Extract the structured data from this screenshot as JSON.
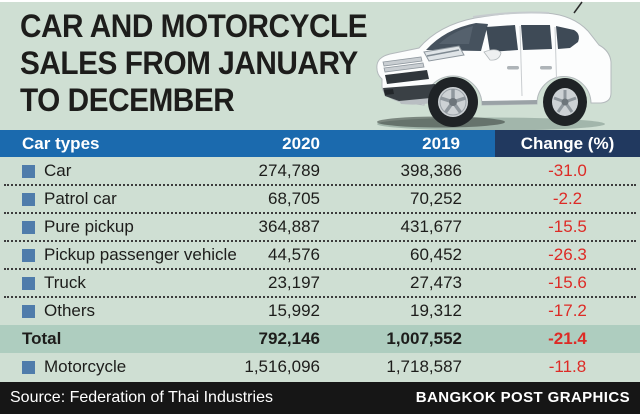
{
  "title": {
    "lines": [
      "CAR AND MOTORCYCLE",
      "SALES FROM JANUARY",
      "TO DECEMBER"
    ]
  },
  "header": {
    "car_types": "Car types",
    "y2020": "2020",
    "y2019": "2019",
    "change": "Change (%)"
  },
  "rows": [
    {
      "label": "Car",
      "y2020": "274,789",
      "y2019": "398,386",
      "change": "-31.0",
      "bullet": true,
      "total": false
    },
    {
      "label": "Patrol car",
      "y2020": "68,705",
      "y2019": "70,252",
      "change": "-2.2",
      "bullet": true,
      "total": false
    },
    {
      "label": "Pure pickup",
      "y2020": "364,887",
      "y2019": "431,677",
      "change": "-15.5",
      "bullet": true,
      "total": false
    },
    {
      "label": "Pickup passenger vehicle",
      "y2020": "44,576",
      "y2019": "60,452",
      "change": "-26.3",
      "bullet": true,
      "total": false
    },
    {
      "label": "Truck",
      "y2020": "23,197",
      "y2019": "27,473",
      "change": "-15.6",
      "bullet": true,
      "total": false
    },
    {
      "label": "Others",
      "y2020": "15,992",
      "y2019": "19,312",
      "change": "-17.2",
      "bullet": true,
      "total": false
    },
    {
      "label": "Total",
      "y2020": "792,146",
      "y2019": "1,007,552",
      "change": "-21.4",
      "bullet": false,
      "total": true
    },
    {
      "label": "Motorcycle",
      "y2020": "1,516,096",
      "y2019": "1,718,587",
      "change": "-11.8",
      "bullet": true,
      "total": false
    }
  ],
  "footer": {
    "source": "Source: Federation of Thai Industries",
    "credit": "BANGKOK POST GRAPHICS"
  },
  "icons": {
    "car": "white-suv-photo",
    "bullet": "blue-square-bullet"
  },
  "colors": {
    "bg": "#cfdfd3",
    "header_blue": "#1b6aae",
    "change_navy": "#21395f",
    "total_bg": "#aecdbf",
    "neg_red": "#dd2b26",
    "bullet_blue": "#4f7cab",
    "footer_bg": "#161616",
    "text_dark": "#1d1d1b"
  },
  "chart_data": {
    "type": "table",
    "title": "CAR AND MOTORCYCLE SALES FROM JANUARY TO DECEMBER",
    "columns": [
      "Car types",
      "2020",
      "2019",
      "Change (%)"
    ],
    "rows": [
      [
        "Car",
        274789,
        398386,
        -31.0
      ],
      [
        "Patrol car",
        68705,
        70252,
        -2.2
      ],
      [
        "Pure pickup",
        364887,
        431677,
        -15.5
      ],
      [
        "Pickup passenger vehicle",
        44576,
        60452,
        -26.3
      ],
      [
        "Truck",
        23197,
        27473,
        -15.6
      ],
      [
        "Others",
        15992,
        19312,
        -17.2
      ],
      [
        "Total",
        792146,
        1007552,
        -21.4
      ],
      [
        "Motorcycle",
        1516096,
        1718587,
        -11.8
      ]
    ],
    "source": "Federation of Thai Industries",
    "credit": "BANGKOK POST GRAPHICS"
  }
}
